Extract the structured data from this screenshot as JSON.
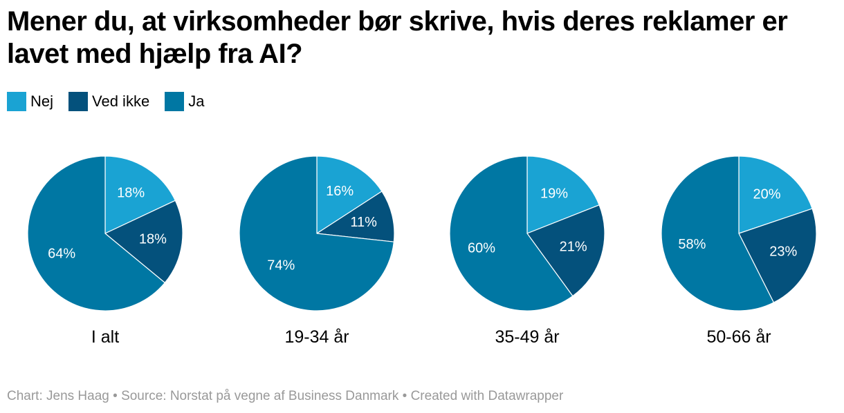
{
  "chart_data": {
    "type": "pie",
    "title": "Mener du, at virksomheder bør skrive, hvis deres reklamer er lavet med hjælp fra AI?",
    "legend": [
      {
        "label": "Nej",
        "color": "#1aa3d3"
      },
      {
        "label": "Ved ikke",
        "color": "#04517c"
      },
      {
        "label": "Ja",
        "color": "#0077a3"
      }
    ],
    "charts": [
      {
        "label": "I alt",
        "values": [
          18,
          18,
          64
        ],
        "data_labels": [
          "18%",
          "18%",
          "64%"
        ]
      },
      {
        "label": "19-34 år",
        "values": [
          16,
          11,
          74
        ],
        "data_labels": [
          "16%",
          "11%",
          "74%"
        ]
      },
      {
        "label": "35-49 år",
        "values": [
          19,
          21,
          60
        ],
        "data_labels": [
          "19%",
          "21%",
          "60%"
        ]
      },
      {
        "label": "50-66 år",
        "values": [
          20,
          23,
          58
        ],
        "data_labels": [
          "20%",
          "23%",
          "58%"
        ]
      }
    ]
  },
  "footer": {
    "text": "Chart: Jens Haag • Source: Norstat på vegne af Business Danmark • Created with Datawrapper"
  }
}
